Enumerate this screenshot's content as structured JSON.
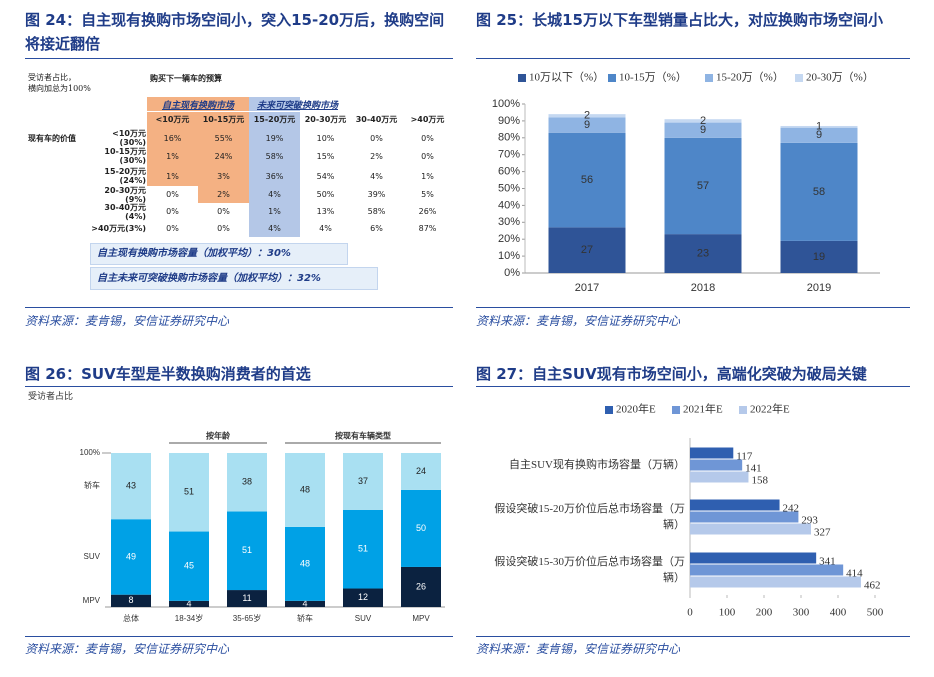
{
  "figures": [
    {
      "title": "图 24：自主现有换购市场空间小，突入15-20万后，换购空间将接近翻倍",
      "source": "资料来源：麦肯锡，安信证券研究中心"
    },
    {
      "title": "图 25：长城15万以下车型销量占比大，对应换购市场空间小",
      "source": "资料来源：麦肯锡，安信证券研究中心"
    },
    {
      "title": "图 26：SUV车型是半数换购消费者的首选",
      "source": "资料来源：麦肯锡，安信证券研究中心"
    },
    {
      "title": "图 27：自主SUV现有市场空间小，高端化突破为破局关键",
      "source": "资料来源：麦肯锡，安信证券研究中心"
    }
  ],
  "table": {
    "note": [
      "受访者占比，",
      "横向加总为100%"
    ],
    "budget_header": "购买下一辆车的预算",
    "groups": [
      "自主现有换购市场",
      "未来可突破换购市场"
    ],
    "row_header": "现有车的价值",
    "columns": [
      "<10万元",
      "10-15万元",
      "15-20万元",
      "20-30万元",
      "30-40万元",
      ">40万元"
    ],
    "rows": [
      {
        "label": "<10万元(30%)",
        "cells": [
          "16%",
          "55%",
          "19%",
          "10%",
          "0%",
          "0%"
        ]
      },
      {
        "label": "10-15万元(30%)",
        "cells": [
          "1%",
          "24%",
          "58%",
          "15%",
          "2%",
          "0%"
        ]
      },
      {
        "label": "15-20万元(24%)",
        "cells": [
          "1%",
          "3%",
          "36%",
          "54%",
          "4%",
          "1%"
        ]
      },
      {
        "label": "20-30万元(9%)",
        "cells": [
          "0%",
          "2%",
          "4%",
          "50%",
          "39%",
          "5%"
        ]
      },
      {
        "label": "30-40万元(4%)",
        "cells": [
          "0%",
          "0%",
          "1%",
          "13%",
          "58%",
          "26%"
        ]
      },
      {
        "label": ">40万元(3%)",
        "cells": [
          "0%",
          "0%",
          "4%",
          "4%",
          "6%",
          "87%"
        ]
      }
    ],
    "summaries": [
      "自主现有换购市场容量（加权平均）：30%",
      "自主未来可突破换购市场容量（加权平均）：32%"
    ]
  },
  "chart_data": [
    {
      "type": "stacked_bar",
      "categories": [
        "2017",
        "2018",
        "2019"
      ],
      "series": [
        {
          "name": "10万以下（%）",
          "color": "#2f5497",
          "values": [
            27,
            23,
            19
          ]
        },
        {
          "name": "10-15万（%）",
          "color": "#4e86c8",
          "values": [
            56,
            57,
            58
          ]
        },
        {
          "name": "15-20万（%）",
          "color": "#8fb4e3",
          "values": [
            9,
            9,
            9
          ]
        },
        {
          "name": "20-30万（%）",
          "color": "#c5d8f1",
          "values": [
            2,
            2,
            1
          ]
        }
      ],
      "ylim": [
        0,
        100
      ],
      "yticks": [
        {
          "value": 0,
          "label": "0%"
        },
        {
          "value": 10,
          "label": "10%"
        },
        {
          "value": 20,
          "label": "20%"
        },
        {
          "value": 30,
          "label": "30%"
        },
        {
          "value": 40,
          "label": "40%"
        },
        {
          "value": 50,
          "label": "50%"
        },
        {
          "value": 60,
          "label": "60%"
        },
        {
          "value": 70,
          "label": "70%"
        },
        {
          "value": 80,
          "label": "80%"
        },
        {
          "value": 90,
          "label": "90%"
        },
        {
          "value": 100,
          "label": "100%"
        }
      ],
      "legend": "top"
    },
    {
      "type": "stacked_bar",
      "note": "受访者占比",
      "groups": [
        "按年龄",
        "按现有车辆类型"
      ],
      "categories": [
        "总体",
        "18-34岁",
        "35-65岁",
        "轿车",
        "SUV",
        "MPV"
      ],
      "series": [
        {
          "name": "MPV",
          "color": "#0b2240",
          "values": [
            8,
            4,
            11,
            4,
            12,
            26
          ]
        },
        {
          "name": "SUV",
          "color": "#00a1e6",
          "values": [
            49,
            45,
            51,
            48,
            51,
            50
          ]
        },
        {
          "name": "轿车",
          "color": "#a9e0f2",
          "values": [
            43,
            51,
            38,
            48,
            37,
            24
          ]
        }
      ],
      "ylim": [
        0,
        100
      ],
      "yticks": [
        {
          "value": 100,
          "label": "100%"
        }
      ],
      "legend": "left"
    },
    {
      "type": "hbar",
      "categories": [
        "自主SUV现有换购市场容量（万辆）",
        "假设突破15-20万价位后总市场容量（万辆）",
        "假设突破15-30万价位后总市场容量（万辆）"
      ],
      "series": [
        {
          "name": "2020年E",
          "color": "#2f5fb0",
          "values": [
            117,
            242,
            341
          ]
        },
        {
          "name": "2021年E",
          "color": "#6f96d6",
          "values": [
            141,
            293,
            414
          ]
        },
        {
          "name": "2022年E",
          "color": "#b5c9ea",
          "values": [
            158,
            327,
            462
          ]
        }
      ],
      "xlim": [
        0,
        500
      ],
      "xticks": [
        0,
        100,
        200,
        300,
        400,
        500
      ],
      "legend": "top"
    }
  ]
}
